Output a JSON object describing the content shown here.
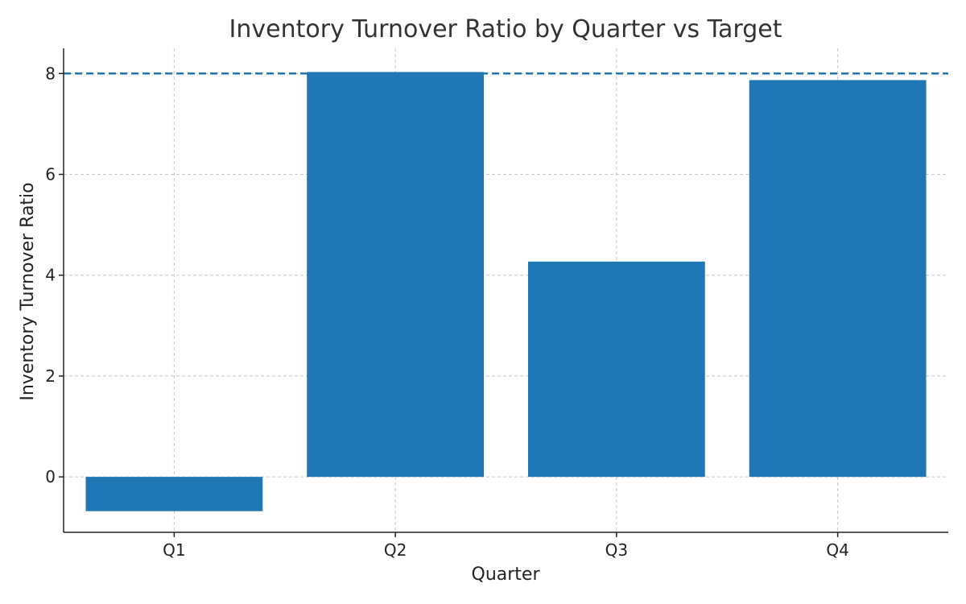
{
  "chart_data": {
    "type": "bar",
    "title": "Inventory Turnover Ratio by Quarter vs Target",
    "xlabel": "Quarter",
    "ylabel": "Inventory Turnover Ratio",
    "categories": [
      "Q1",
      "Q2",
      "Q3",
      "Q4"
    ],
    "values": [
      -0.68,
      8.03,
      4.27,
      7.87
    ],
    "ylim": [
      -1.1,
      8.5
    ],
    "yticks": [
      0,
      2,
      4,
      6,
      8
    ],
    "target": 8.0,
    "grid": true,
    "bar_color": "#1f77b4",
    "target_line_color": "#1f77b4"
  }
}
